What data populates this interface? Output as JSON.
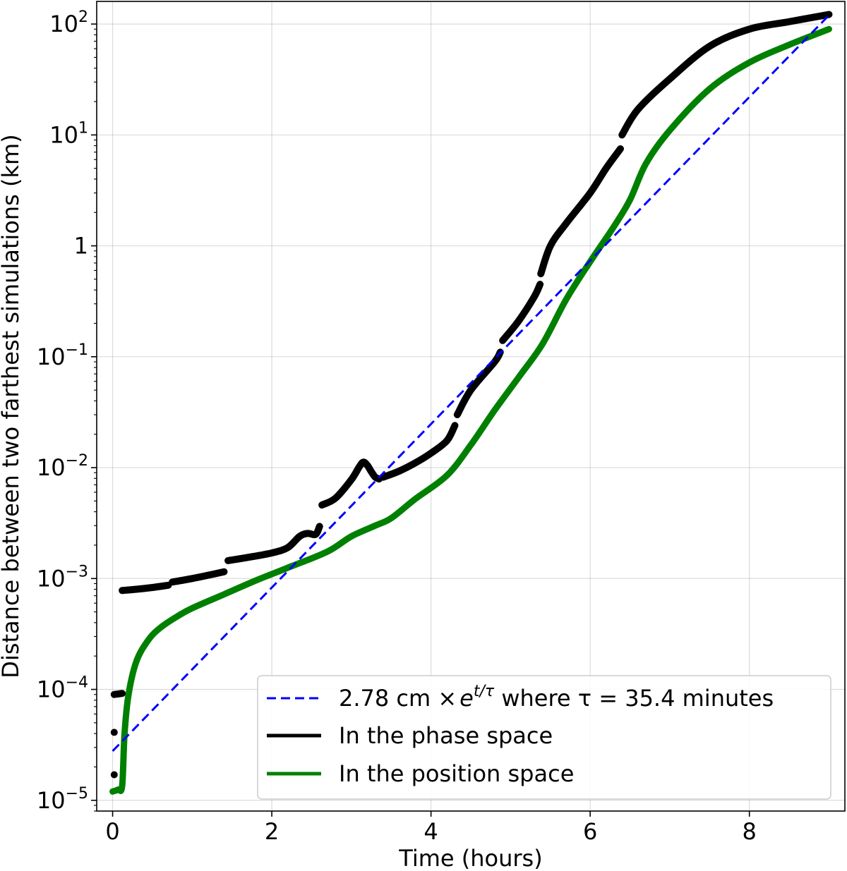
{
  "chart_data": {
    "type": "line",
    "title": "",
    "xlabel": "Time (hours)",
    "ylabel": "Distance between two farthest simulations (km)",
    "xlim": [
      -0.2,
      9.2
    ],
    "ylim": [
      8e-06,
      160
    ],
    "yscale": "log",
    "grid": true,
    "xticks": [
      {
        "value": 0,
        "label": "0"
      },
      {
        "value": 2,
        "label": "2"
      },
      {
        "value": 4,
        "label": "4"
      },
      {
        "value": 6,
        "label": "6"
      },
      {
        "value": 8,
        "label": "8"
      }
    ],
    "yticks": [
      {
        "value": 1e-05,
        "base": "10",
        "exp": "−5"
      },
      {
        "value": 0.0001,
        "base": "10",
        "exp": "−4"
      },
      {
        "value": 0.001,
        "base": "10",
        "exp": "−3"
      },
      {
        "value": 0.01,
        "base": "10",
        "exp": "−2"
      },
      {
        "value": 0.1,
        "base": "10",
        "exp": "−1"
      },
      {
        "value": 1,
        "base": "1",
        "exp": ""
      },
      {
        "value": 10,
        "base": "10",
        "exp": "1"
      },
      {
        "value": 100,
        "base": "10",
        "exp": "2"
      }
    ],
    "legend": {
      "placement": "lower-right",
      "entries": [
        {
          "series": "fit",
          "text_pre": "2.78 cm ×",
          "text_e": "e",
          "text_sup": "t/τ",
          "text_post": " where τ = 35.4 minutes"
        },
        {
          "series": "phase",
          "text": "In the phase space"
        },
        {
          "series": "position",
          "text": "In the position space"
        }
      ]
    },
    "series": [
      {
        "name": "2.78 cm × e^(t/τ) where τ = 35.4 minutes",
        "key": "fit",
        "style": "dashed",
        "color": "#0000ff",
        "x": [
          0,
          9
        ],
        "y": [
          2.78e-05,
          120
        ]
      },
      {
        "name": "In the phase space",
        "key": "phase",
        "style": "markers",
        "color": "#000000",
        "segments": [
          {
            "x": [
              0.02
            ],
            "y": [
              1.7e-05
            ]
          },
          {
            "x": [
              0.02
            ],
            "y": [
              4.1e-05
            ]
          },
          {
            "x": [
              0.02,
              0.12
            ],
            "y": [
              9e-05,
              9.2e-05
            ]
          },
          {
            "x": [
              0.12,
              0.3,
              0.5,
              0.7
            ],
            "y": [
              0.00078,
              0.0008,
              0.00083,
              0.00087
            ]
          },
          {
            "x": [
              0.75,
              1.0,
              1.2,
              1.4
            ],
            "y": [
              0.00093,
              0.001,
              0.00107,
              0.00115
            ]
          },
          {
            "x": [
              1.45,
              1.7,
              2.0,
              2.2,
              2.35,
              2.45,
              2.55,
              2.6
            ],
            "y": [
              0.00145,
              0.00155,
              0.0017,
              0.0019,
              0.0024,
              0.00255,
              0.0025,
              0.00295
            ]
          },
          {
            "x": [
              2.63,
              2.8,
              3.0,
              3.1,
              3.15,
              3.2,
              3.25,
              3.3,
              3.35
            ],
            "y": [
              0.0046,
              0.0053,
              0.0078,
              0.0102,
              0.0112,
              0.0105,
              0.0092,
              0.0082,
              0.0079
            ]
          },
          {
            "x": [
              3.4,
              3.6,
              3.8,
              4.0,
              4.2,
              4.3
            ],
            "y": [
              0.0082,
              0.0093,
              0.011,
              0.0135,
              0.0175,
              0.024
            ]
          },
          {
            "x": [
              4.33,
              4.5,
              4.8,
              4.87
            ],
            "y": [
              0.03,
              0.05,
              0.09,
              0.11
            ]
          },
          {
            "x": [
              4.9,
              5.1,
              5.3,
              5.37
            ],
            "y": [
              0.14,
              0.21,
              0.35,
              0.45
            ]
          },
          {
            "x": [
              5.38,
              5.5,
              5.7,
              6.0,
              6.2,
              6.38
            ],
            "y": [
              0.56,
              1.0,
              1.6,
              3.0,
              5.0,
              7.5
            ]
          },
          {
            "x": [
              6.4,
              6.6,
              7.0,
              7.5,
              8.0,
              8.5,
              9.0
            ],
            "y": [
              10,
              17,
              32,
              63,
              90,
              105,
              122
            ]
          }
        ]
      },
      {
        "name": "In the position space",
        "key": "position",
        "style": "markers",
        "color": "#008000",
        "x": [
          0.0,
          0.07,
          0.12,
          0.15,
          0.2,
          0.3,
          0.45,
          0.6,
          0.8,
          1.0,
          1.4,
          1.8,
          2.2,
          2.7,
          3.0,
          3.3,
          3.5,
          3.8,
          4.2,
          4.5,
          4.8,
          5.1,
          5.4,
          5.7,
          6.0,
          6.3,
          6.5,
          6.7,
          7.0,
          7.5,
          8.0,
          8.5,
          9.0
        ],
        "y": [
          1.2e-05,
          1.25e-05,
          1.35e-05,
          4e-05,
          9e-05,
          0.00018,
          0.00028,
          0.00036,
          0.00045,
          0.00054,
          0.00072,
          0.00096,
          0.00125,
          0.00175,
          0.0024,
          0.003,
          0.0035,
          0.0052,
          0.0085,
          0.016,
          0.033,
          0.065,
          0.13,
          0.33,
          0.72,
          1.5,
          2.6,
          5.5,
          11.0,
          26.0,
          45.0,
          65.0,
          90.0
        ]
      }
    ]
  }
}
